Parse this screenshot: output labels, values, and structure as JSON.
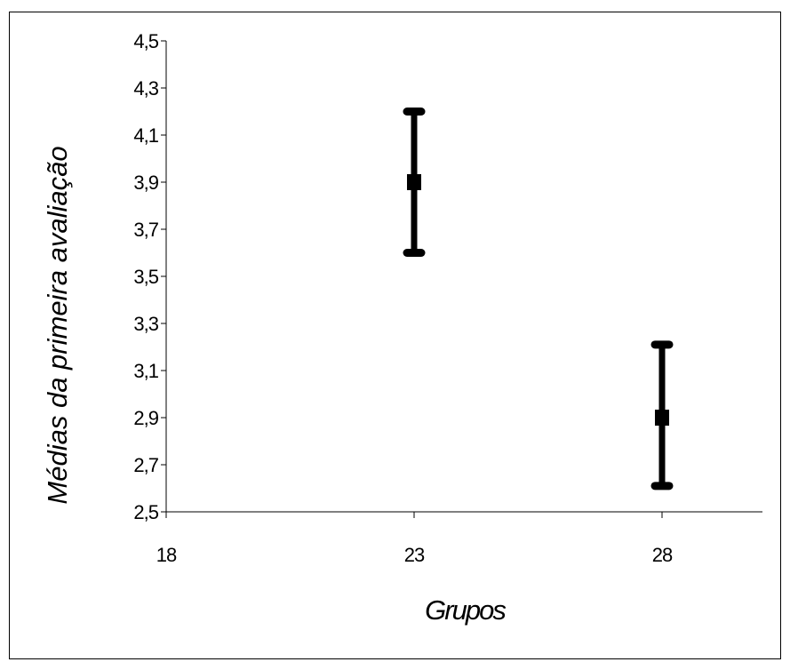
{
  "chart_data": {
    "type": "scatter",
    "title": "",
    "xlabel": "Grupos",
    "ylabel": "Médias da primeira avaliação",
    "xlim": [
      18,
      30
    ],
    "ylim": [
      2.5,
      4.5
    ],
    "x_ticks": [
      18,
      23,
      28
    ],
    "x_tick_labels": [
      "18",
      "23",
      "28"
    ],
    "y_ticks": [
      2.5,
      2.7,
      2.9,
      3.1,
      3.3,
      3.5,
      3.7,
      3.9,
      4.1,
      4.3,
      4.5
    ],
    "y_tick_labels": [
      "2,5",
      "2,7",
      "2,9",
      "3,1",
      "3,3",
      "3,5",
      "3,7",
      "3,9",
      "4,1",
      "4,3",
      "4,5"
    ],
    "grid": false,
    "legend": "none",
    "series": [
      {
        "marker": "square",
        "color": "#000000",
        "points": [
          {
            "x": 23,
            "y": 3.9,
            "lower": 3.6,
            "upper": 4.2
          },
          {
            "x": 28,
            "y": 2.9,
            "lower": 2.61,
            "upper": 3.21
          }
        ]
      }
    ]
  }
}
